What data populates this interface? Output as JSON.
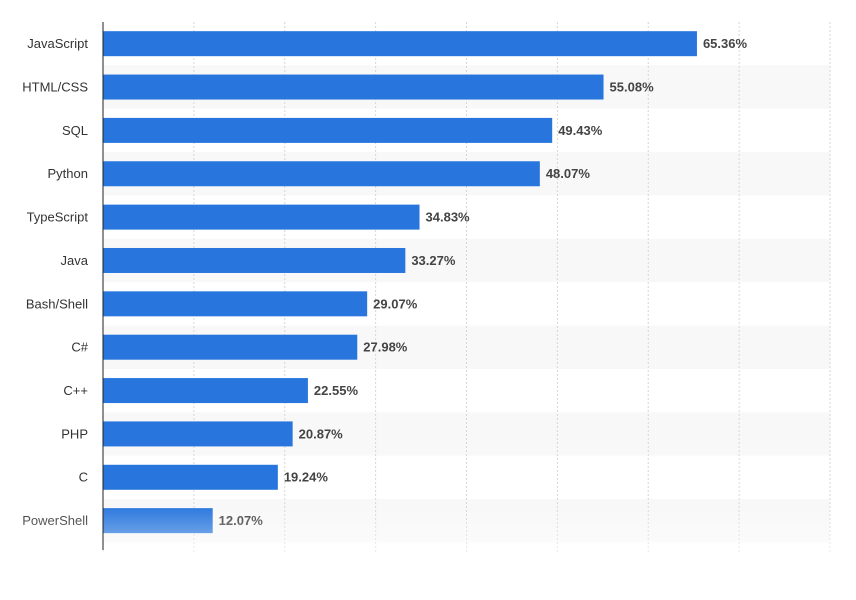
{
  "chart_data": {
    "type": "barh",
    "categories": [
      "JavaScript",
      "HTML/CSS",
      "SQL",
      "Python",
      "TypeScript",
      "Java",
      "Bash/Shell",
      "C#",
      "C++",
      "PHP",
      "C",
      "PowerShell"
    ],
    "values": [
      65.36,
      55.08,
      49.43,
      48.07,
      34.83,
      33.27,
      29.07,
      27.98,
      22.55,
      20.87,
      19.24,
      12.07
    ],
    "value_labels": [
      "65.36%",
      "55.08%",
      "49.43%",
      "48.07%",
      "34.83%",
      "33.27%",
      "29.07%",
      "27.98%",
      "22.55%",
      "20.87%",
      "19.24%",
      "12.07%"
    ],
    "color": "#2876dd",
    "xlim": [
      0,
      80
    ],
    "xticks": [
      0,
      10,
      20,
      30,
      40,
      50,
      60,
      70,
      80
    ],
    "grid": true
  }
}
